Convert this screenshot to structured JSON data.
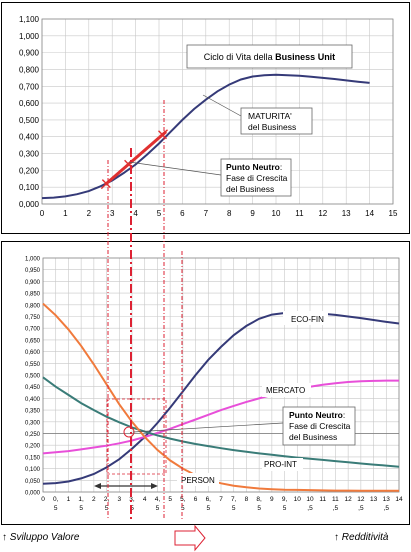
{
  "chart_data": [
    {
      "type": "line",
      "xlim": [
        0,
        15
      ],
      "ylim": [
        0,
        1.1
      ],
      "x_ticks": [
        "0",
        "1",
        "2",
        "3",
        "4",
        "5",
        "6",
        "7",
        "8",
        "9",
        "10",
        "11",
        "12",
        "13",
        "14",
        "15"
      ],
      "y_ticks": [
        "0,000",
        "0,100",
        "0,200",
        "0,300",
        "0,400",
        "0,500",
        "0,600",
        "0,700",
        "0,800",
        "0,900",
        "1,000",
        "1,100"
      ],
      "grid": true,
      "series": [
        {
          "color": "#353a78",
          "x": [
            0,
            0.5,
            1,
            1.5,
            2,
            2.5,
            3,
            3.5,
            4,
            4.5,
            5,
            5.5,
            6,
            6.5,
            7,
            7.5,
            8,
            8.5,
            9,
            9.5,
            10,
            10.5,
            11,
            11.5,
            12,
            12.5,
            13,
            13.5,
            14
          ],
          "y": [
            0.035,
            0.038,
            0.045,
            0.058,
            0.077,
            0.105,
            0.14,
            0.185,
            0.235,
            0.295,
            0.36,
            0.43,
            0.5,
            0.565,
            0.62,
            0.67,
            0.71,
            0.74,
            0.758,
            0.765,
            0.768,
            0.766,
            0.762,
            0.757,
            0.75,
            0.743,
            0.735,
            0.727,
            0.72
          ]
        }
      ],
      "red_segment": {
        "x": [
          2.7,
          5.3
        ],
        "y": [
          0.115,
          0.43
        ]
      },
      "markers_x": [
        2.75,
        3.7,
        5.15
      ],
      "annotations": {
        "title_prefix": "Ciclo di Vita della ",
        "title_bold": "Business Unit",
        "maturita_line1": "MATURITA'",
        "maturita_line2": "del Business",
        "punto_bold": "Punto Neutro",
        "punto_colon": ":",
        "punto_line2": "Fase di Crescita",
        "punto_line3": "del Business"
      }
    },
    {
      "type": "line",
      "xlim": [
        0,
        14
      ],
      "ylim": [
        0,
        1.0
      ],
      "x_ticks": [
        {
          "line1": "0"
        },
        {
          "line1": "0,",
          "line2": "5"
        },
        {
          "line1": "1"
        },
        {
          "line1": "1,",
          "line2": "5"
        },
        {
          "line1": "2"
        },
        {
          "line1": "2,",
          "line2": "5"
        },
        {
          "line1": "3"
        },
        {
          "line1": "3,",
          "line2": "5"
        },
        {
          "line1": "4"
        },
        {
          "line1": "4,",
          "line2": "5"
        },
        {
          "line1": "5"
        },
        {
          "line1": "5,",
          "line2": "5"
        },
        {
          "line1": "6"
        },
        {
          "line1": "6,",
          "line2": "5"
        },
        {
          "line1": "7"
        },
        {
          "line1": "7,",
          "line2": "5"
        },
        {
          "line1": "8"
        },
        {
          "line1": "8,",
          "line2": "5"
        },
        {
          "line1": "9"
        },
        {
          "line1": "9,",
          "line2": "5"
        },
        {
          "line1": "10"
        },
        {
          "line1": "10",
          "line2": ",5"
        },
        {
          "line1": "11"
        },
        {
          "line1": "11",
          "line2": ",5"
        },
        {
          "line1": "12"
        },
        {
          "line1": "12",
          "line2": ",5"
        },
        {
          "line1": "13"
        },
        {
          "line1": "13",
          "line2": ",5"
        },
        {
          "line1": "14"
        }
      ],
      "y_ticks": [
        "0,000",
        "0,050",
        "0,100",
        "0,150",
        "0,200",
        "0,250",
        "0,300",
        "0,350",
        "0,400",
        "0,450",
        "0,500",
        "0,550",
        "0,600",
        "0,650",
        "0,700",
        "0,750",
        "0,800",
        "0,850",
        "0,900",
        "0,950",
        "1,000"
      ],
      "grid": true,
      "series": [
        {
          "name": "ECO-FIN",
          "color": "#353a78",
          "x": [
            0,
            0.5,
            1,
            1.5,
            2,
            2.5,
            3,
            3.5,
            4,
            4.5,
            5,
            5.5,
            6,
            6.5,
            7,
            7.5,
            8,
            8.5,
            9,
            9.5,
            10,
            10.5,
            11,
            11.5,
            12,
            12.5,
            13,
            13.5,
            14
          ],
          "y": [
            0.035,
            0.038,
            0.045,
            0.058,
            0.077,
            0.105,
            0.14,
            0.185,
            0.235,
            0.295,
            0.36,
            0.43,
            0.5,
            0.565,
            0.62,
            0.67,
            0.71,
            0.74,
            0.758,
            0.765,
            0.768,
            0.766,
            0.762,
            0.757,
            0.75,
            0.743,
            0.735,
            0.727,
            0.72
          ]
        },
        {
          "name": "MERCATO",
          "color": "#e84fd9",
          "x": [
            0,
            0.5,
            1,
            1.5,
            2,
            2.5,
            3,
            3.5,
            4,
            4.5,
            5,
            5.5,
            6,
            6.5,
            7,
            7.5,
            8,
            8.5,
            9,
            9.5,
            10,
            10.5,
            11,
            11.5,
            12,
            12.5,
            13,
            13.5,
            14
          ],
          "y": [
            0.165,
            0.17,
            0.175,
            0.182,
            0.19,
            0.198,
            0.208,
            0.22,
            0.235,
            0.252,
            0.27,
            0.29,
            0.31,
            0.33,
            0.35,
            0.368,
            0.385,
            0.4,
            0.415,
            0.428,
            0.44,
            0.45,
            0.458,
            0.465,
            0.47,
            0.473,
            0.475,
            0.476,
            0.476
          ]
        },
        {
          "name": "PRO-INT",
          "color": "#3a7c78",
          "x": [
            0,
            0.5,
            1,
            1.5,
            2,
            2.5,
            3,
            3.5,
            4,
            4.5,
            5,
            5.5,
            6,
            6.5,
            7,
            7.5,
            8,
            8.5,
            9,
            9.5,
            10,
            10.5,
            11,
            11.5,
            12,
            12.5,
            13,
            13.5,
            14
          ],
          "y": [
            0.49,
            0.45,
            0.415,
            0.38,
            0.35,
            0.322,
            0.298,
            0.276,
            0.258,
            0.242,
            0.228,
            0.216,
            0.205,
            0.196,
            0.187,
            0.179,
            0.172,
            0.165,
            0.159,
            0.153,
            0.147,
            0.142,
            0.137,
            0.132,
            0.127,
            0.122,
            0.117,
            0.113,
            0.108
          ]
        },
        {
          "name": "PERSON",
          "color": "#f07a3c",
          "x": [
            0,
            0.5,
            1,
            1.5,
            2,
            2.5,
            3,
            3.5,
            4,
            4.5,
            5,
            5.5,
            6,
            6.5,
            7,
            7.5,
            8,
            8.5,
            9,
            9.5,
            10,
            10.5,
            11,
            11.5,
            12,
            12.5,
            13,
            13.5,
            14
          ],
          "y": [
            0.805,
            0.755,
            0.695,
            0.625,
            0.545,
            0.46,
            0.375,
            0.3,
            0.235,
            0.18,
            0.135,
            0.1,
            0.072,
            0.052,
            0.037,
            0.027,
            0.02,
            0.015,
            0.012,
            0.01,
            0.009,
            0.008,
            0.007,
            0.006,
            0.006,
            0.005,
            0.005,
            0.005,
            0.005
          ]
        }
      ],
      "annotations": {
        "punto_bold": "Punto Neutro",
        "punto_colon": ":",
        "punto_line2": "Fase di Crescita",
        "punto_line3": "del Business"
      }
    }
  ],
  "footer": {
    "left": "Sviluppo Valore",
    "right": "Redditività"
  }
}
